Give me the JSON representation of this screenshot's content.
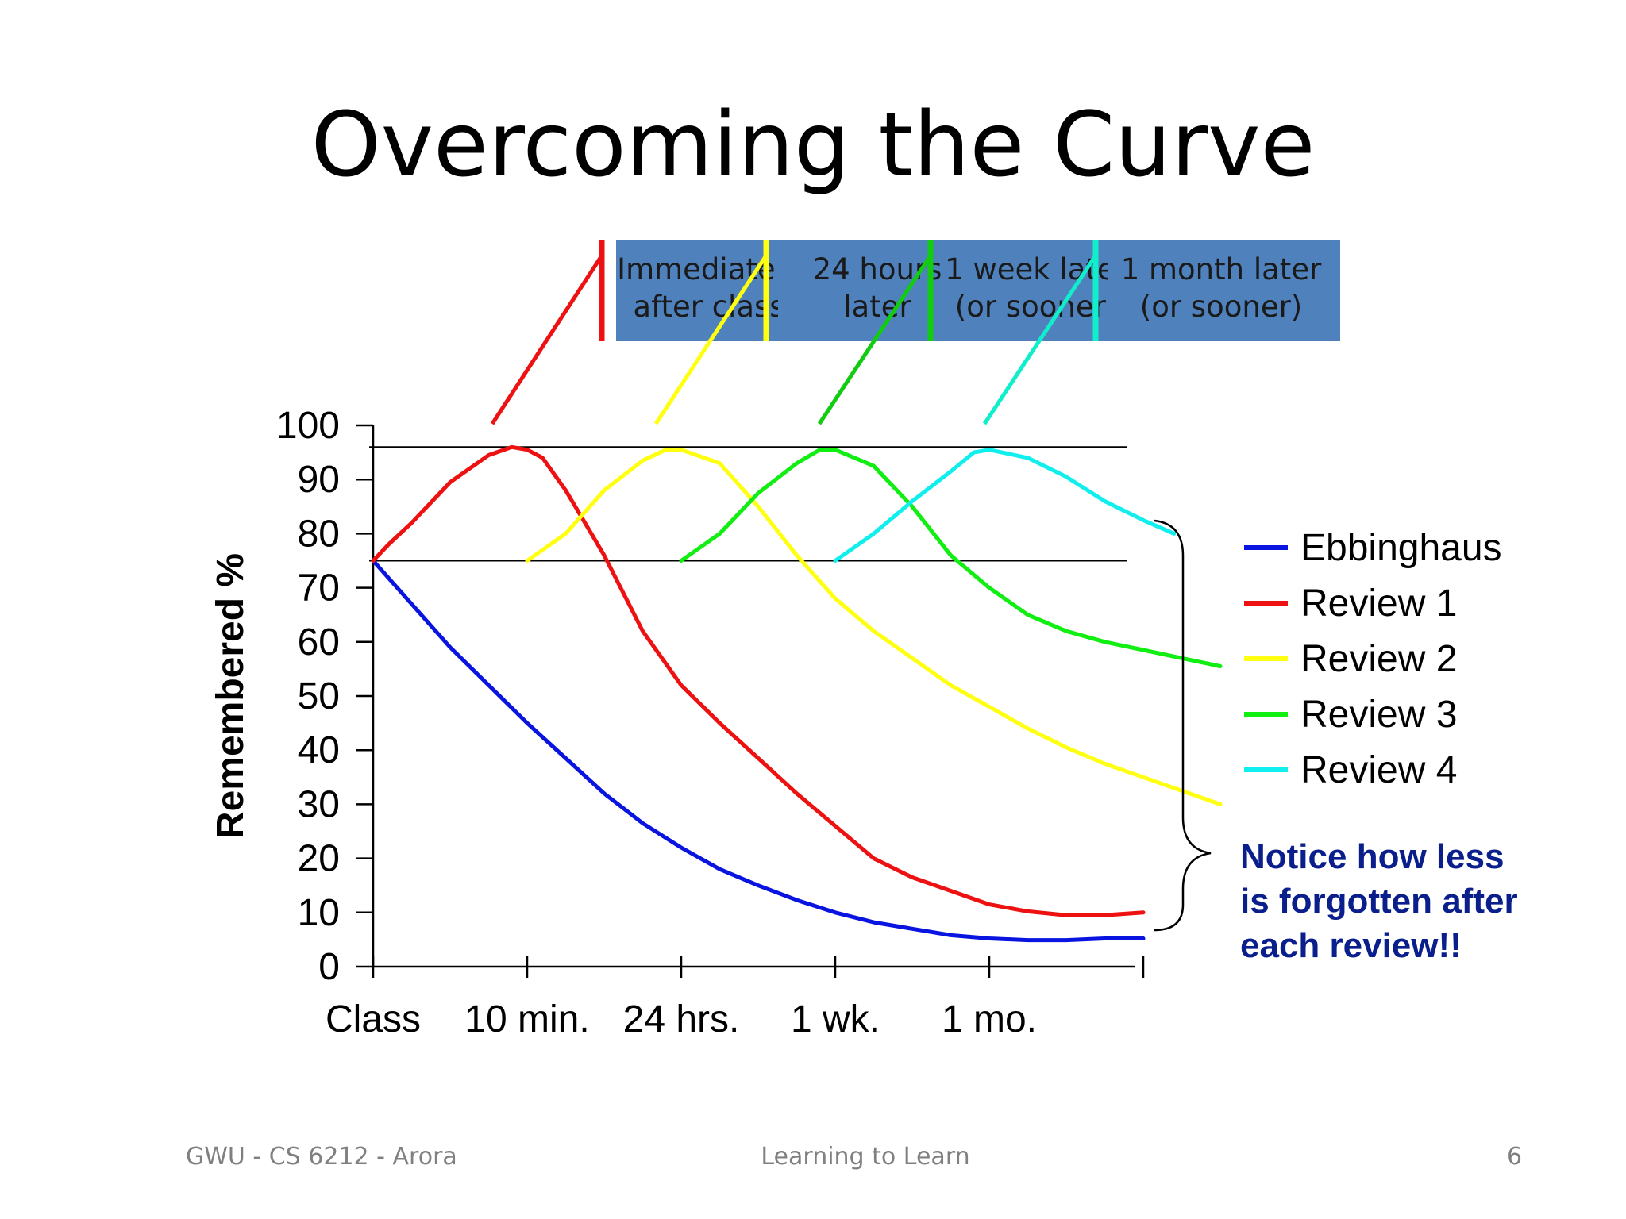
{
  "slide": {
    "title": "Overcoming the Curve",
    "footer_left": "GWU - CS 6212 - Arora",
    "footer_center": "Learning to Learn",
    "footer_right": "6"
  },
  "chart_data": {
    "type": "line",
    "ylabel": "Remembered %",
    "ylim": [
      0,
      100
    ],
    "yticks": [
      0,
      10,
      20,
      30,
      40,
      50,
      60,
      70,
      80,
      90,
      100
    ],
    "xlim": [
      0,
      5
    ],
    "xtick_labels": [
      {
        "x": 0,
        "label": "Class"
      },
      {
        "x": 1,
        "label": "10 min."
      },
      {
        "x": 2,
        "label": "24 hrs."
      },
      {
        "x": 3,
        "label": "1 wk."
      },
      {
        "x": 4,
        "label": "1 mo."
      }
    ],
    "reference_lines": [
      96,
      75
    ],
    "legend_position": "right",
    "series": [
      {
        "name": "Ebbinghaus",
        "color": "#0a14e0",
        "points": [
          [
            0,
            75
          ],
          [
            0.25,
            67
          ],
          [
            0.5,
            59
          ],
          [
            0.75,
            52
          ],
          [
            1,
            45
          ],
          [
            1.25,
            38.5
          ],
          [
            1.5,
            32
          ],
          [
            1.75,
            26.5
          ],
          [
            2,
            22
          ],
          [
            2.25,
            18
          ],
          [
            2.5,
            15
          ],
          [
            2.75,
            12.3
          ],
          [
            3,
            10
          ],
          [
            3.25,
            8.2
          ],
          [
            3.5,
            7
          ],
          [
            3.75,
            5.8
          ],
          [
            4,
            5.2
          ],
          [
            4.25,
            4.9
          ],
          [
            4.5,
            4.9
          ],
          [
            4.75,
            5.2
          ],
          [
            5,
            5.2
          ]
        ]
      },
      {
        "name": "Review 1",
        "color": "#ee1111",
        "points": [
          [
            0,
            75
          ],
          [
            0.1,
            78
          ],
          [
            0.25,
            82
          ],
          [
            0.5,
            89.5
          ],
          [
            0.75,
            94.5
          ],
          [
            0.9,
            96
          ],
          [
            1,
            95.5
          ],
          [
            1.1,
            94
          ],
          [
            1.25,
            88
          ],
          [
            1.5,
            76
          ],
          [
            1.75,
            62
          ],
          [
            2,
            52
          ],
          [
            2.25,
            45
          ],
          [
            2.5,
            38.5
          ],
          [
            2.75,
            32
          ],
          [
            3,
            26
          ],
          [
            3.25,
            20
          ],
          [
            3.5,
            16.5
          ],
          [
            3.75,
            14
          ],
          [
            4,
            11.5
          ],
          [
            4.25,
            10.2
          ],
          [
            4.5,
            9.5
          ],
          [
            4.75,
            9.5
          ],
          [
            5,
            10
          ]
        ]
      },
      {
        "name": "Review 2",
        "color": "#ffff11",
        "points": [
          [
            1,
            75
          ],
          [
            1.25,
            80
          ],
          [
            1.5,
            88
          ],
          [
            1.75,
            93.5
          ],
          [
            1.9,
            95.5
          ],
          [
            2,
            95.5
          ],
          [
            2.25,
            93
          ],
          [
            2.5,
            85
          ],
          [
            2.75,
            76
          ],
          [
            3,
            68
          ],
          [
            3.25,
            62
          ],
          [
            3.5,
            57
          ],
          [
            3.75,
            52
          ],
          [
            4,
            48
          ],
          [
            4.25,
            44
          ],
          [
            4.5,
            40.5
          ],
          [
            4.75,
            37.5
          ],
          [
            5,
            35
          ],
          [
            5.25,
            32.5
          ],
          [
            5.5,
            30
          ]
        ]
      },
      {
        "name": "Review 3",
        "color": "#11ee11",
        "points": [
          [
            2,
            75
          ],
          [
            2.25,
            80
          ],
          [
            2.5,
            87.5
          ],
          [
            2.75,
            93
          ],
          [
            2.9,
            95.5
          ],
          [
            3,
            95.5
          ],
          [
            3.25,
            92.5
          ],
          [
            3.5,
            85
          ],
          [
            3.75,
            76
          ],
          [
            4,
            70
          ],
          [
            4.25,
            65
          ],
          [
            4.5,
            62
          ],
          [
            4.75,
            60
          ],
          [
            5,
            58.5
          ],
          [
            5.25,
            57
          ],
          [
            5.5,
            55.5
          ]
        ]
      },
      {
        "name": "Review 4",
        "color": "#11eeee",
        "points": [
          [
            3,
            75
          ],
          [
            3.25,
            80
          ],
          [
            3.5,
            86
          ],
          [
            3.75,
            91.5
          ],
          [
            3.9,
            95
          ],
          [
            4,
            95.5
          ],
          [
            4.25,
            94
          ],
          [
            4.5,
            90.5
          ],
          [
            4.75,
            86
          ],
          [
            5,
            82.5
          ],
          [
            5.2,
            80
          ]
        ]
      }
    ],
    "annotation_box": {
      "color": "#4f81bd",
      "labels": [
        {
          "line1": "Immediately",
          "line2": "after class"
        },
        {
          "line1": "24 hours",
          "line2": "later"
        },
        {
          "line1": "1 week later",
          "line2": "(or sooner)"
        },
        {
          "line1": "1 month later",
          "line2": "(or sooner)"
        }
      ]
    },
    "note": {
      "lines": [
        "Notice how less",
        "is forgotten after",
        "each review!!"
      ]
    }
  }
}
